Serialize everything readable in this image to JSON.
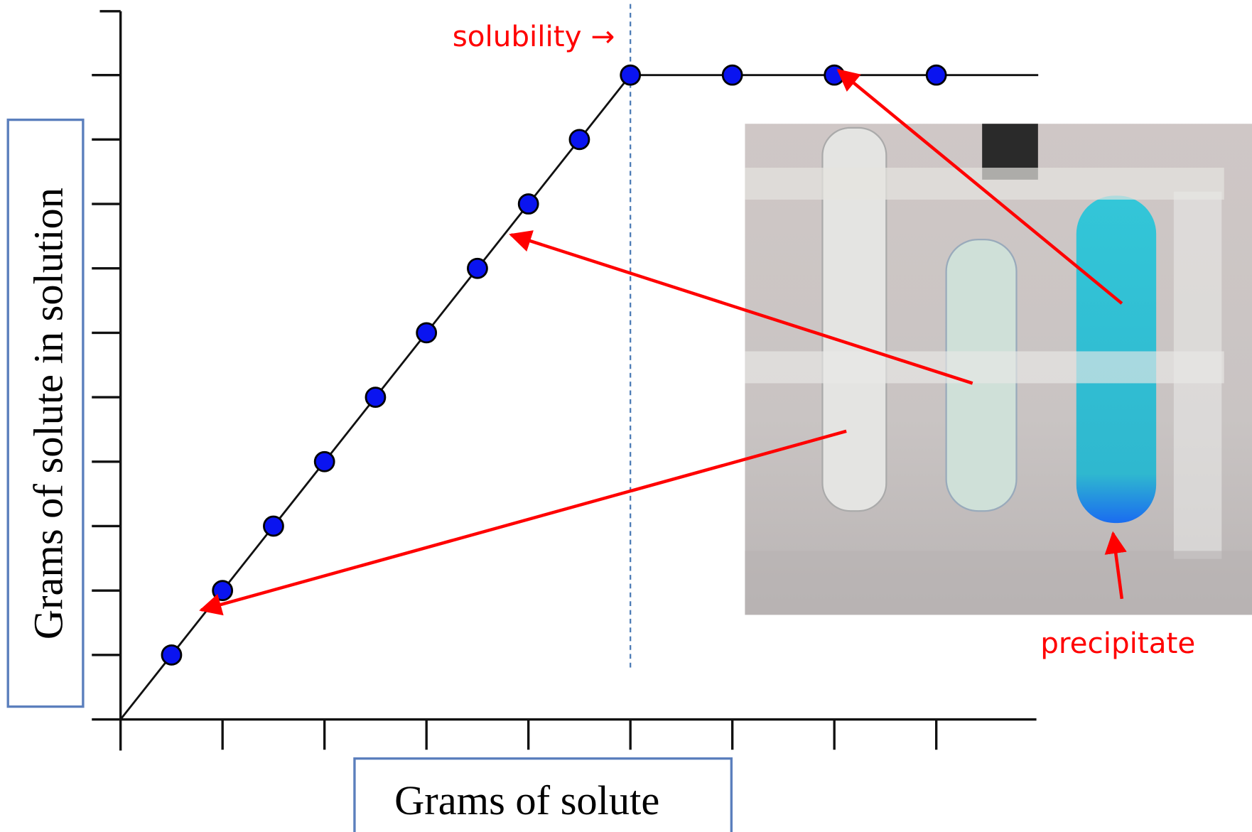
{
  "chart_data": {
    "type": "scatter",
    "x_label": "Grams of solute",
    "y_label": "Grams of solute in solution",
    "annotations": [
      "solubility →",
      "precipitate"
    ],
    "x": [
      0.5,
      1,
      1.5,
      2,
      2.5,
      3,
      3.5,
      4,
      4.5,
      5,
      6,
      7,
      8
    ],
    "values": [
      1,
      2,
      3,
      4,
      5,
      6,
      7,
      8,
      9,
      10,
      10,
      10,
      10
    ],
    "color": "#0a14f0",
    "line": {
      "x": [
        0,
        5,
        9
      ],
      "values": [
        0,
        10,
        10
      ]
    },
    "solubility_x": 5,
    "xlim": [
      0,
      9
    ],
    "ylim": [
      0,
      11
    ],
    "xticks": [
      1,
      2,
      3,
      4,
      5,
      6,
      7,
      8
    ],
    "yticks": [
      1,
      2,
      3,
      4,
      5,
      6,
      7,
      8,
      9,
      10
    ]
  }
}
